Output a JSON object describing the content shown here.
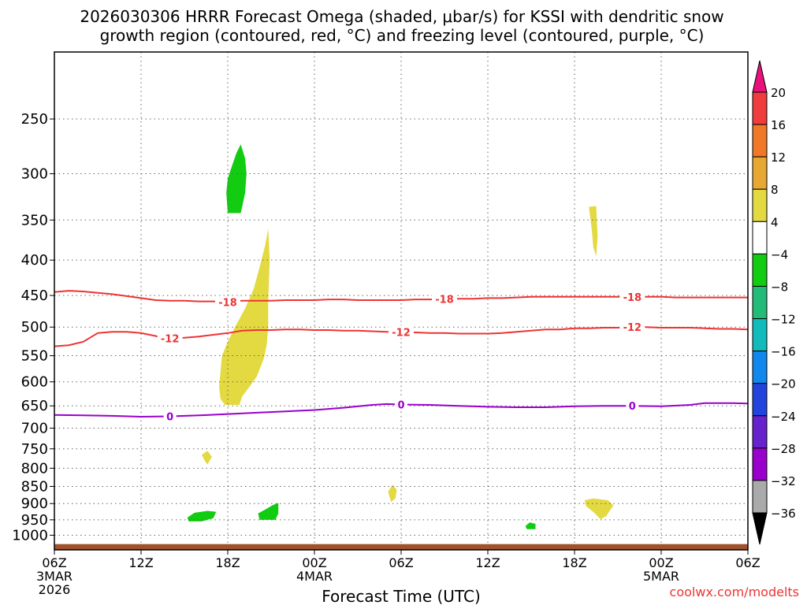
{
  "chart_data": {
    "type": "time-height-cross-section",
    "title_line1": "2026030306 HRRR Forecast Omega (shaded, μbar/s) for KSSI with dendritic snow",
    "title_line2": "growth region (contoured, red, °C) and freezing level (contoured, purple, °C)",
    "xlabel": "Forecast Time (UTC)",
    "credit": "coolwx.com/modelts",
    "x_ticks": [
      {
        "hour": 0,
        "label": "06Z",
        "sub1": "3MAR",
        "sub2": "2026"
      },
      {
        "hour": 6,
        "label": "12Z",
        "sub1": "",
        "sub2": ""
      },
      {
        "hour": 12,
        "label": "18Z",
        "sub1": "",
        "sub2": ""
      },
      {
        "hour": 18,
        "label": "00Z",
        "sub1": "4MAR",
        "sub2": ""
      },
      {
        "hour": 24,
        "label": "06Z",
        "sub1": "",
        "sub2": ""
      },
      {
        "hour": 30,
        "label": "12Z",
        "sub1": "",
        "sub2": ""
      },
      {
        "hour": 36,
        "label": "18Z",
        "sub1": "",
        "sub2": ""
      },
      {
        "hour": 42,
        "label": "00Z",
        "sub1": "5MAR",
        "sub2": ""
      },
      {
        "hour": 48,
        "label": "06Z",
        "sub1": "",
        "sub2": ""
      }
    ],
    "x_range_hours": [
      0,
      48
    ],
    "y_range_hPa": [
      1050,
      200
    ],
    "y_ticks": [
      {
        "value": 250,
        "label": "250"
      },
      {
        "value": 300,
        "label": "300"
      },
      {
        "value": 350,
        "label": "350"
      },
      {
        "value": 400,
        "label": "400"
      },
      {
        "value": 450,
        "label": "450"
      },
      {
        "value": 500,
        "label": "500"
      },
      {
        "value": 550,
        "label": "550"
      },
      {
        "value": 600,
        "label": "600"
      },
      {
        "value": 650,
        "label": "650"
      },
      {
        "value": 700,
        "label": "700"
      },
      {
        "value": 750,
        "label": "750"
      },
      {
        "value": 800,
        "label": "800"
      },
      {
        "value": 850,
        "label": "850"
      },
      {
        "value": 900,
        "label": "900"
      },
      {
        "value": 950,
        "label": "950"
      },
      {
        "value": 1000,
        "label": "1000"
      }
    ],
    "grid": true,
    "contours": [
      {
        "name": "-18C",
        "label": "-18",
        "color": "#ee3333",
        "points": [
          [
            0,
            445
          ],
          [
            1,
            443
          ],
          [
            2,
            444
          ],
          [
            3,
            446
          ],
          [
            4,
            448
          ],
          [
            5,
            451
          ],
          [
            6,
            454
          ],
          [
            7,
            457
          ],
          [
            8,
            458
          ],
          [
            9,
            458
          ],
          [
            10,
            459
          ],
          [
            11,
            459
          ],
          [
            12,
            460
          ],
          [
            13,
            458
          ],
          [
            14,
            458
          ],
          [
            15,
            458
          ],
          [
            16,
            457
          ],
          [
            17,
            457
          ],
          [
            18,
            457
          ],
          [
            19,
            456
          ],
          [
            20,
            456
          ],
          [
            21,
            457
          ],
          [
            22,
            457
          ],
          [
            23,
            457
          ],
          [
            24,
            457
          ],
          [
            25,
            456
          ],
          [
            26,
            456
          ],
          [
            27,
            455
          ],
          [
            28,
            455
          ],
          [
            29,
            455
          ],
          [
            30,
            454
          ],
          [
            31,
            454
          ],
          [
            32,
            453
          ],
          [
            33,
            452
          ],
          [
            34,
            452
          ],
          [
            35,
            452
          ],
          [
            36,
            452
          ],
          [
            37,
            452
          ],
          [
            38,
            452
          ],
          [
            39,
            452
          ],
          [
            40,
            452
          ],
          [
            41,
            452
          ],
          [
            42,
            452
          ],
          [
            43,
            453
          ],
          [
            44,
            453
          ],
          [
            45,
            453
          ],
          [
            46,
            453
          ],
          [
            47,
            453
          ],
          [
            48,
            453
          ]
        ],
        "label_hours": [
          12,
          27,
          40
        ]
      },
      {
        "name": "-12C",
        "label": "-12",
        "color": "#ee3333",
        "points": [
          [
            0,
            533
          ],
          [
            1,
            531
          ],
          [
            2,
            525
          ],
          [
            3,
            510
          ],
          [
            4,
            508
          ],
          [
            5,
            508
          ],
          [
            6,
            510
          ],
          [
            7,
            515
          ],
          [
            7.5,
            518
          ],
          [
            8,
            519
          ],
          [
            9,
            518
          ],
          [
            10,
            516
          ],
          [
            11,
            513
          ],
          [
            12,
            510
          ],
          [
            13,
            506
          ],
          [
            14,
            505
          ],
          [
            15,
            505
          ],
          [
            16,
            504
          ],
          [
            17,
            504
          ],
          [
            18,
            505
          ],
          [
            19,
            505
          ],
          [
            20,
            506
          ],
          [
            21,
            506
          ],
          [
            22,
            507
          ],
          [
            23,
            508
          ],
          [
            24,
            508
          ],
          [
            25,
            509
          ],
          [
            26,
            510
          ],
          [
            27,
            510
          ],
          [
            28,
            511
          ],
          [
            29,
            511
          ],
          [
            30,
            511
          ],
          [
            31,
            510
          ],
          [
            32,
            508
          ],
          [
            33,
            506
          ],
          [
            34,
            504
          ],
          [
            35,
            504
          ],
          [
            36,
            502
          ],
          [
            37,
            502
          ],
          [
            38,
            501
          ],
          [
            39,
            501
          ],
          [
            40,
            500
          ],
          [
            41,
            500
          ],
          [
            42,
            501
          ],
          [
            43,
            501
          ],
          [
            44,
            501
          ],
          [
            45,
            502
          ],
          [
            46,
            503
          ],
          [
            47,
            503
          ],
          [
            48,
            504
          ]
        ],
        "label_hours": [
          8,
          24,
          40
        ]
      },
      {
        "name": "0C",
        "label": "0",
        "color": "#9900cc",
        "points": [
          [
            0,
            670
          ],
          [
            2,
            671
          ],
          [
            4,
            672
          ],
          [
            6,
            674
          ],
          [
            8,
            673
          ],
          [
            10,
            671
          ],
          [
            12,
            668
          ],
          [
            14,
            665
          ],
          [
            16,
            662
          ],
          [
            18,
            659
          ],
          [
            20,
            654
          ],
          [
            22,
            648
          ],
          [
            23,
            646
          ],
          [
            24,
            647
          ],
          [
            26,
            648
          ],
          [
            28,
            650
          ],
          [
            30,
            652
          ],
          [
            32,
            653
          ],
          [
            34,
            653
          ],
          [
            36,
            651
          ],
          [
            38,
            650
          ],
          [
            40,
            650
          ],
          [
            42,
            651
          ],
          [
            44,
            648
          ],
          [
            45,
            644
          ],
          [
            47,
            644
          ],
          [
            48,
            645
          ]
        ],
        "label_hours": [
          8,
          24,
          40
        ]
      }
    ],
    "shaded_areas": [
      {
        "color": "#e3d940",
        "category": "4 to 8",
        "polygon": [
          [
            11.8,
            648
          ],
          [
            11.5,
            635
          ],
          [
            11.4,
            610
          ],
          [
            11.5,
            580
          ],
          [
            11.6,
            550
          ],
          [
            12,
            525
          ],
          [
            12.5,
            500
          ],
          [
            13.2,
            470
          ],
          [
            13.8,
            440
          ],
          [
            14.2,
            410
          ],
          [
            14.6,
            380
          ],
          [
            14.8,
            360
          ],
          [
            14.9,
            400
          ],
          [
            14.8,
            460
          ],
          [
            14.8,
            500
          ],
          [
            14.7,
            530
          ],
          [
            14.5,
            555
          ],
          [
            14.0,
            590
          ],
          [
            13.5,
            610
          ],
          [
            13.0,
            630
          ],
          [
            12.8,
            648
          ]
        ]
      },
      {
        "color": "#11cc11",
        "category": "-8 to -4",
        "polygon": [
          [
            12.0,
            342
          ],
          [
            11.9,
            320
          ],
          [
            12.0,
            305
          ],
          [
            12.3,
            292
          ],
          [
            12.6,
            280
          ],
          [
            12.9,
            272
          ],
          [
            13.2,
            285
          ],
          [
            13.3,
            300
          ],
          [
            13.2,
            320
          ],
          [
            13.0,
            335
          ],
          [
            12.9,
            342
          ]
        ]
      },
      {
        "color": "#e3d940",
        "category": "4 to 8",
        "polygon": [
          [
            37.0,
            335
          ],
          [
            37.5,
            334
          ],
          [
            37.6,
            370
          ],
          [
            37.5,
            395
          ],
          [
            37.3,
            383
          ],
          [
            37.2,
            362
          ]
        ]
      },
      {
        "color": "#e3d940",
        "category": "4 to 8",
        "polygon": [
          [
            10.2,
            765
          ],
          [
            10.6,
            755
          ],
          [
            10.9,
            770
          ],
          [
            10.6,
            790
          ],
          [
            10.4,
            780
          ]
        ]
      },
      {
        "color": "#11cc11",
        "category": "-8 to -4",
        "polygon": [
          [
            9.2,
            943
          ],
          [
            9.7,
            928
          ],
          [
            10.6,
            922
          ],
          [
            11.2,
            925
          ],
          [
            11.0,
            945
          ],
          [
            10.2,
            955
          ],
          [
            9.3,
            955
          ]
        ]
      },
      {
        "color": "#11cc11",
        "category": "-8 to -4",
        "polygon": [
          [
            14.1,
            930
          ],
          [
            14.6,
            918
          ],
          [
            15.1,
            905
          ],
          [
            15.5,
            898
          ],
          [
            15.5,
            930
          ],
          [
            15.3,
            950
          ],
          [
            14.2,
            950
          ]
        ]
      },
      {
        "color": "#e3d940",
        "category": "4 to 8",
        "polygon": [
          [
            23.1,
            865
          ],
          [
            23.4,
            845
          ],
          [
            23.7,
            860
          ],
          [
            23.6,
            885
          ],
          [
            23.3,
            895
          ]
        ]
      },
      {
        "color": "#11cc11",
        "category": "-8 to -4",
        "polygon": [
          [
            32.6,
            970
          ],
          [
            32.9,
            958
          ],
          [
            33.3,
            963
          ],
          [
            33.3,
            980
          ],
          [
            32.7,
            980
          ]
        ]
      },
      {
        "color": "#e3d940",
        "category": "4 to 8",
        "polygon": [
          [
            36.7,
            890
          ],
          [
            37.3,
            885
          ],
          [
            38.3,
            890
          ],
          [
            38.7,
            905
          ],
          [
            38.2,
            938
          ],
          [
            37.8,
            948
          ],
          [
            37.3,
            925
          ],
          [
            36.8,
            908
          ]
        ]
      }
    ],
    "ground": {
      "color": "#a0522d",
      "from_hPa": 1030,
      "to_hPa": 1050
    },
    "colorbar": {
      "labels": [
        "20",
        "16",
        "12",
        "8",
        "4",
        "−4",
        "−8",
        "−12",
        "−16",
        "−20",
        "−24",
        "−28",
        "−32",
        "−36"
      ],
      "colors": [
        "#f03c3c",
        "#f07828",
        "#e6a832",
        "#e3d940",
        "#ffffff",
        "#11cc11",
        "#22bb77",
        "#11bbbb",
        "#1188ee",
        "#2244dd",
        "#6622cc",
        "#9900cc",
        "#aaaaaa"
      ],
      "top_tip_color": "#e8127a",
      "bottom_tip_color": "#000000"
    }
  }
}
